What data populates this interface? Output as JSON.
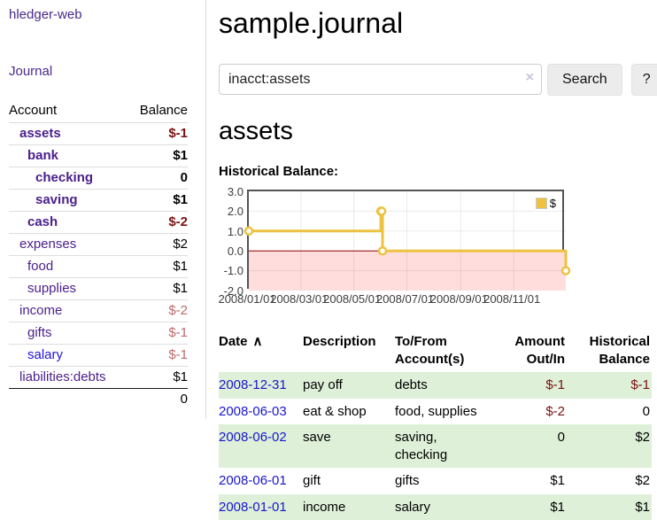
{
  "colors": {
    "link_purple": "#4a1f8b",
    "link_blue": "#1a16cc",
    "negative_strong": "#7a1010",
    "negative_soft": "#bf6a6a",
    "stripe_green": "#def0d8",
    "chart_gold": "#edc240",
    "chart_border": "#545454",
    "negative_area": "#ffdddd",
    "zero_line": "#8b0000"
  },
  "sidebar": {
    "app_title": "hledger-web",
    "nav_journal": "Journal",
    "header": {
      "account": "Account",
      "balance": "Balance"
    },
    "accounts": [
      {
        "name": "assets",
        "depth": 1,
        "bold": true,
        "balance": "$-1",
        "neg": "strong"
      },
      {
        "name": "bank",
        "depth": 2,
        "bold": true,
        "balance": "$1"
      },
      {
        "name": "checking",
        "depth": 3,
        "bold": true,
        "balance": "0"
      },
      {
        "name": "saving",
        "depth": 3,
        "bold": true,
        "balance": "$1"
      },
      {
        "name": "cash",
        "depth": 2,
        "bold": true,
        "balance": "$-2",
        "neg": "strong"
      },
      {
        "name": "expenses",
        "depth": 1,
        "bold": false,
        "balance": "$2"
      },
      {
        "name": "food",
        "depth": 2,
        "bold": false,
        "balance": "$1"
      },
      {
        "name": "supplies",
        "depth": 2,
        "bold": false,
        "balance": "$1"
      },
      {
        "name": "income",
        "depth": 1,
        "bold": false,
        "balance": "$-2",
        "neg": "soft"
      },
      {
        "name": "gifts",
        "depth": 2,
        "bold": false,
        "balance": "$-1",
        "neg": "soft"
      },
      {
        "name": "salary",
        "depth": 2,
        "bold": false,
        "balance": "$-1",
        "neg": "soft",
        "link_style": "unvisited"
      },
      {
        "name": "liabilities:debts",
        "depth": 1,
        "bold": false,
        "balance": "$1"
      }
    ],
    "total": "0"
  },
  "main": {
    "title": "sample.journal",
    "search": {
      "value": "inacct:assets",
      "clear_icon": "×",
      "button_label": "Search",
      "help_label": "?"
    },
    "account_heading": "assets",
    "chart_label": "Historical Balance:",
    "register": {
      "headers": {
        "date": "Date",
        "sort_icon": "∧",
        "description": "Description",
        "accounts": "To/From Account(s)",
        "amount": "Amount Out/In",
        "balance": "Historical Balance"
      },
      "rows": [
        {
          "date": "2008-12-31",
          "description": "pay off",
          "accounts": "debts",
          "amount": "$-1",
          "amount_neg": true,
          "balance": "$-1",
          "balance_neg": true,
          "stripe": true
        },
        {
          "date": "2008-06-03",
          "description": "eat & shop",
          "accounts": "food, supplies",
          "amount": "$-2",
          "amount_neg": true,
          "balance": "0",
          "balance_neg": false,
          "stripe": false
        },
        {
          "date": "2008-06-02",
          "description": "save",
          "accounts": "saving,\nchecking",
          "amount": "0",
          "amount_neg": false,
          "balance": "$2",
          "balance_neg": false,
          "stripe": true
        },
        {
          "date": "2008-06-01",
          "description": "gift",
          "accounts": "gifts",
          "amount": "$1",
          "amount_neg": false,
          "balance": "$2",
          "balance_neg": false,
          "stripe": false
        },
        {
          "date": "2008-01-01",
          "description": "income",
          "accounts": "salary",
          "amount": "$1",
          "amount_neg": false,
          "balance": "$1",
          "balance_neg": false,
          "stripe": true
        }
      ]
    }
  },
  "chart_data": {
    "type": "line",
    "title": "Historical Balance:",
    "step": true,
    "series": [
      {
        "name": "$",
        "color": "#edc240",
        "x": [
          "2008-01-01",
          "2008-06-01",
          "2008-06-02",
          "2008-06-03",
          "2008-12-31"
        ],
        "y": [
          1,
          2,
          2,
          0,
          -1
        ]
      }
    ],
    "xlim": [
      "2008-01-01",
      "2008-12-31"
    ],
    "ylim": [
      -2,
      3
    ],
    "x_tick_labels": [
      "2008/01/01",
      "2008/03/01",
      "2008/05/01",
      "2008/07/01",
      "2008/09/01",
      "2008/11/01"
    ],
    "y_ticks": [
      3,
      2,
      1,
      0,
      -1,
      -2
    ],
    "y_tick_labels": [
      "3.0",
      "2.0",
      "1.0",
      "0.0",
      "-1.0",
      "-2.0"
    ],
    "grid": true,
    "legend": {
      "position": "top-right",
      "label": "$"
    },
    "negative_area_color": "#ffdddd",
    "zero_line_color": "#8b0000",
    "marker": {
      "fill": "#ffffff",
      "stroke": "#edc240"
    }
  }
}
